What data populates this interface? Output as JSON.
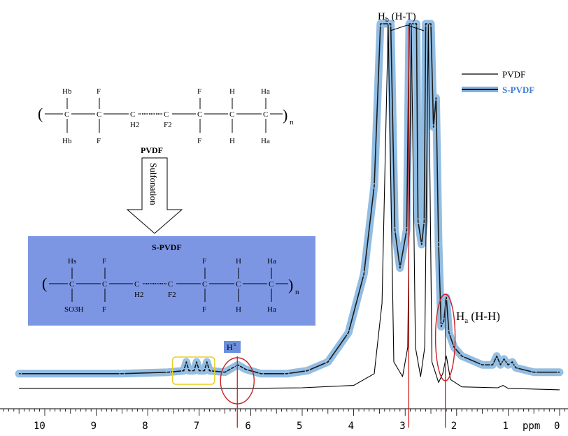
{
  "chart_data": {
    "type": "line",
    "title": "",
    "xlabel": "ppm",
    "ylabel": "",
    "xlim": [
      10.5,
      0
    ],
    "x_ticks": [
      10,
      9,
      8,
      7,
      6,
      5,
      4,
      3,
      2,
      1,
      0
    ],
    "x_reversed": true,
    "grid": false,
    "legend_position": "top-right",
    "series": [
      {
        "name": "PVDF",
        "color": "#000000",
        "points": [
          [
            10.5,
            0.01
          ],
          [
            8,
            0.01
          ],
          [
            6,
            0.01
          ],
          [
            5,
            0.012
          ],
          [
            4,
            0.02
          ],
          [
            3.6,
            0.06
          ],
          [
            3.45,
            0.3
          ],
          [
            3.33,
            1.25
          ],
          [
            3.22,
            0.1
          ],
          [
            3.05,
            0.05
          ],
          [
            2.95,
            0.15
          ],
          [
            2.88,
            1.25
          ],
          [
            2.8,
            0.15
          ],
          [
            2.7,
            0.05
          ],
          [
            2.62,
            0.15
          ],
          [
            2.55,
            1.25
          ],
          [
            2.48,
            0.1
          ],
          [
            2.35,
            0.03
          ],
          [
            2.27,
            0.06
          ],
          [
            2.2,
            0.12
          ],
          [
            2.12,
            0.04
          ],
          [
            1.9,
            0.015
          ],
          [
            1.2,
            0.012
          ],
          [
            1.1,
            0.02
          ],
          [
            1.0,
            0.01
          ],
          [
            0,
            0.005
          ]
        ]
      },
      {
        "name": "S-PVDF",
        "color": "#5b9bd5",
        "points": [
          [
            10.5,
            0.06
          ],
          [
            8.5,
            0.06
          ],
          [
            7.6,
            0.065
          ],
          [
            7.3,
            0.07
          ],
          [
            7.25,
            0.1
          ],
          [
            7.2,
            0.07
          ],
          [
            7.1,
            0.07
          ],
          [
            7.05,
            0.1
          ],
          [
            7.0,
            0.07
          ],
          [
            6.9,
            0.07
          ],
          [
            6.85,
            0.1
          ],
          [
            6.8,
            0.07
          ],
          [
            6.5,
            0.065
          ],
          [
            6.35,
            0.08
          ],
          [
            6.25,
            0.09
          ],
          [
            6.1,
            0.075
          ],
          [
            5.8,
            0.06
          ],
          [
            5.3,
            0.06
          ],
          [
            4.9,
            0.07
          ],
          [
            4.5,
            0.1
          ],
          [
            4.1,
            0.2
          ],
          [
            3.8,
            0.4
          ],
          [
            3.6,
            0.7
          ],
          [
            3.48,
            1.35
          ],
          [
            3.28,
            1.35
          ],
          [
            3.2,
            0.55
          ],
          [
            3.1,
            0.42
          ],
          [
            2.97,
            0.55
          ],
          [
            2.92,
            1.35
          ],
          [
            2.78,
            1.35
          ],
          [
            2.75,
            0.58
          ],
          [
            2.68,
            0.5
          ],
          [
            2.63,
            0.58
          ],
          [
            2.6,
            1.35
          ],
          [
            2.5,
            1.35
          ],
          [
            2.45,
            0.9
          ],
          [
            2.4,
            1.0
          ],
          [
            2.35,
            0.5
          ],
          [
            2.3,
            0.22
          ],
          [
            2.25,
            0.24
          ],
          [
            2.2,
            0.32
          ],
          [
            2.15,
            0.2
          ],
          [
            2.05,
            0.15
          ],
          [
            1.9,
            0.12
          ],
          [
            1.5,
            0.09
          ],
          [
            1.3,
            0.09
          ],
          [
            1.22,
            0.12
          ],
          [
            1.15,
            0.09
          ],
          [
            1.08,
            0.11
          ],
          [
            1.0,
            0.09
          ],
          [
            0.92,
            0.1
          ],
          [
            0.85,
            0.08
          ],
          [
            0.5,
            0.065
          ],
          [
            0,
            0.065
          ]
        ]
      }
    ],
    "annotations": {
      "hb_ht": "Hb (H-T)",
      "ha_hh": "Ha (H-H)",
      "hs": "Hs"
    },
    "ppm_unit": "ppm"
  },
  "scheme": {
    "pvdf_label": "PVDF",
    "spvdf_label": "S-PVDF",
    "arrow_label": "Sulfonation",
    "n": "n",
    "pvdf_top": [
      "Hb",
      "F",
      "F",
      "H",
      "Ha"
    ],
    "pvdf_bottom": [
      "Hb",
      "F",
      "F",
      "H",
      "Ha"
    ],
    "pvdf_mid": [
      "H2",
      "F2"
    ],
    "spvdf_top": [
      "Hs",
      "F",
      "F",
      "H",
      "Ha"
    ],
    "spvdf_bottom": [
      "SO3H",
      "F",
      "F",
      "H",
      "Ha"
    ],
    "spvdf_mid": [
      "H2",
      "F2"
    ],
    "carbon": "C"
  },
  "colors": {
    "pvdf_line": "#000000",
    "spvdf_halo": "#7fb2de",
    "spvdf_core": "#1a1a1a",
    "scheme_box": "#7d96e4",
    "marker_line": "#cc2222",
    "circle": "#cc2222",
    "yellow_box": "#e8d020",
    "hs_badge": "#6b8fdc"
  }
}
